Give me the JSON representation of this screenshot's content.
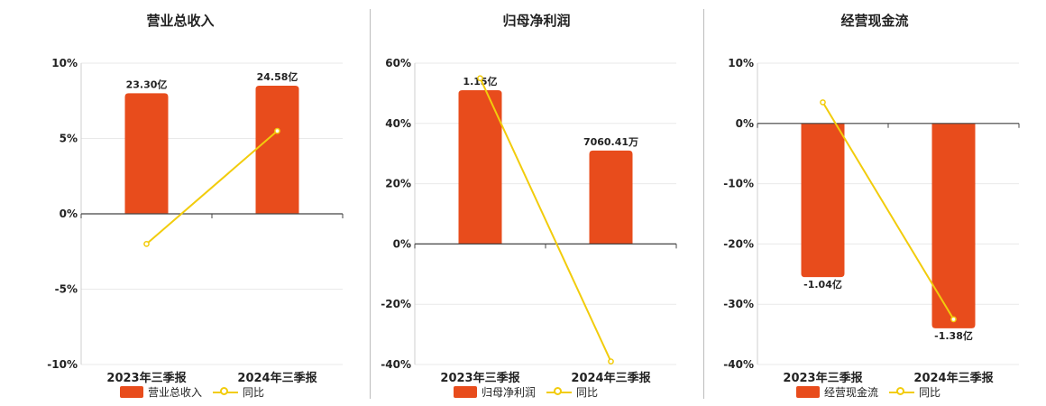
{
  "chart_data": [
    {
      "type": "bar",
      "title": "营业总收入",
      "categories": [
        "2023年三季报",
        "2024年三季报"
      ],
      "bar_labels": [
        "23.30亿",
        "24.58亿"
      ],
      "series": [
        {
          "name": "营业总收入",
          "type": "bar",
          "values": [
            8.0,
            8.5
          ]
        },
        {
          "name": "同比",
          "type": "line",
          "values": [
            -2.0,
            5.5
          ]
        }
      ],
      "yticks": [
        "10%",
        "5%",
        "0%",
        "-5%",
        "-10%"
      ],
      "ylim": [
        -10,
        10
      ],
      "legend": "bottom"
    },
    {
      "type": "bar",
      "title": "归母净利润",
      "categories": [
        "2023年三季报",
        "2024年三季报"
      ],
      "bar_labels": [
        "1.15亿",
        "7060.41万"
      ],
      "series": [
        {
          "name": "归母净利润",
          "type": "bar",
          "values": [
            51,
            31
          ]
        },
        {
          "name": "同比",
          "type": "line",
          "values": [
            55,
            -39
          ]
        }
      ],
      "yticks": [
        "60%",
        "40%",
        "20%",
        "0%",
        "-20%",
        "-40%"
      ],
      "ylim": [
        -40,
        60
      ],
      "legend": "bottom"
    },
    {
      "type": "bar",
      "title": "经营现金流",
      "categories": [
        "2023年三季报",
        "2024年三季报"
      ],
      "bar_labels": [
        "-1.04亿",
        "-1.38亿"
      ],
      "series": [
        {
          "name": "经营现金流",
          "type": "bar",
          "values": [
            -25.5,
            -34
          ]
        },
        {
          "name": "同比",
          "type": "line",
          "values": [
            3.5,
            -32.5
          ]
        }
      ],
      "yticks": [
        "10%",
        "0%",
        "-10%",
        "-20%",
        "-30%",
        "-40%"
      ],
      "ylim": [
        -40,
        10
      ],
      "legend": "bottom"
    }
  ],
  "colors": {
    "bar": "#e84c1c",
    "line": "#f2cc0c",
    "grid": "#e9e9e9",
    "axis": "#444444",
    "text": "#222222"
  }
}
